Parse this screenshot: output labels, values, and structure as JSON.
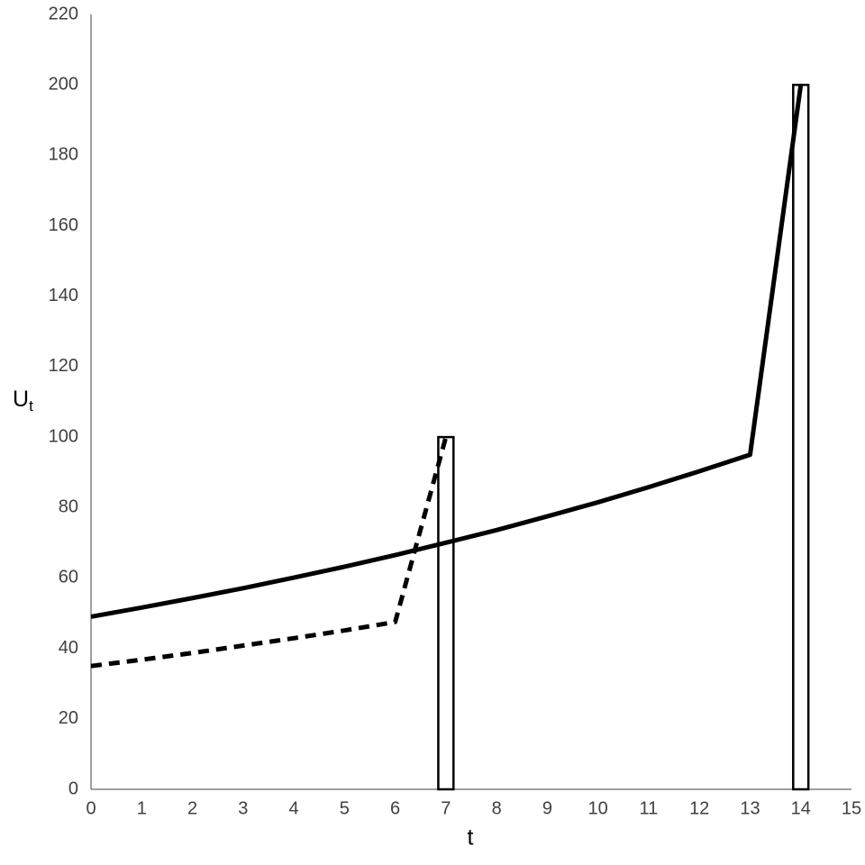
{
  "chart_data": {
    "type": "line",
    "x_label": "t",
    "y_label": "U",
    "y_label_subscript": "t",
    "x": [
      0,
      1,
      2,
      3,
      4,
      5,
      6,
      7,
      8,
      9,
      10,
      11,
      12,
      13,
      14
    ],
    "series": [
      {
        "type": "bar",
        "color": "#000000",
        "values": [
          null,
          null,
          null,
          null,
          null,
          null,
          null,
          100,
          null,
          null,
          null,
          null,
          null,
          null,
          200
        ]
      },
      {
        "type": "line",
        "style": "solid",
        "color": "#000000",
        "values": [
          49,
          51.6,
          54.3,
          57.1,
          60.1,
          63.2,
          66.5,
          70,
          73.6,
          77.5,
          81.5,
          85.8,
          90.3,
          95,
          200
        ]
      },
      {
        "type": "line",
        "style": "dashed",
        "color": "#000000",
        "values": [
          35,
          36.8,
          38.7,
          40.8,
          42.9,
          45.1,
          47.5,
          100,
          null,
          null,
          null,
          null,
          null,
          null,
          null
        ]
      }
    ],
    "xlim": [
      0,
      15
    ],
    "xticks": [
      0,
      1,
      2,
      3,
      4,
      5,
      6,
      7,
      8,
      9,
      10,
      11,
      12,
      13,
      14,
      15
    ],
    "ylim": [
      0,
      220
    ],
    "yticks": [
      0,
      20,
      40,
      60,
      80,
      100,
      120,
      140,
      160,
      180,
      200,
      220
    ],
    "grid": false
  }
}
